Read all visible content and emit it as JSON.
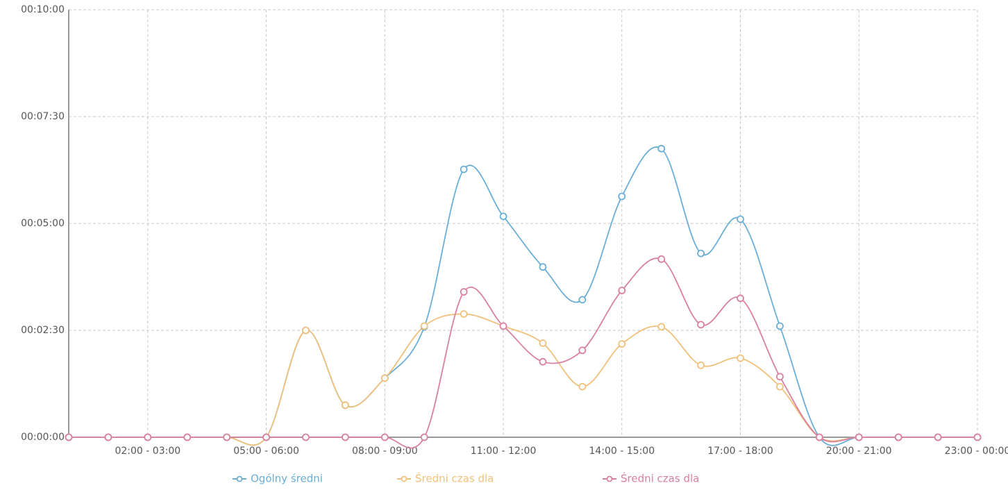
{
  "chart_data": {
    "type": "line",
    "categories": [
      null,
      null,
      "02:00 - 03:00",
      null,
      null,
      "05:00 - 06:00",
      null,
      null,
      "08:00 - 09:00",
      null,
      null,
      "11:00 - 12:00",
      null,
      null,
      "14:00 - 15:00",
      null,
      null,
      "17:00 - 18:00",
      null,
      null,
      "20:00 - 21:00",
      null,
      null,
      "23:00 - 00:00"
    ],
    "series": [
      {
        "name": "Ogólny średni",
        "color": "#6aaed6",
        "values": [
          0,
          0,
          0,
          0,
          0,
          0,
          150,
          45,
          83,
          155,
          376,
          310,
          239,
          193,
          338,
          405,
          258,
          306,
          156,
          0,
          0,
          0,
          0,
          0
        ]
      },
      {
        "name": "Średni czas dla",
        "color": "#f0c07a",
        "values": [
          0,
          0,
          0,
          0,
          0,
          0,
          150,
          45,
          83,
          156,
          173,
          156,
          132,
          71,
          131,
          155,
          101,
          111,
          71,
          0,
          0,
          0,
          0,
          0
        ]
      },
      {
        "name": "Średni czas dla",
        "color": "#d9809f",
        "values": [
          0,
          0,
          0,
          0,
          0,
          0,
          0,
          0,
          0,
          0,
          204,
          156,
          106,
          122,
          206,
          250,
          158,
          195,
          85,
          0,
          0,
          0,
          0,
          0
        ]
      }
    ],
    "ylim": [
      0,
      600
    ],
    "yticks": [
      {
        "value": 0,
        "label": "00:00:00"
      },
      {
        "value": 150,
        "label": "00:02:30"
      },
      {
        "value": 300,
        "label": "00:05:00"
      },
      {
        "value": 450,
        "label": "00:07:30"
      },
      {
        "value": 600,
        "label": "00:10:00"
      }
    ],
    "grid": true
  }
}
